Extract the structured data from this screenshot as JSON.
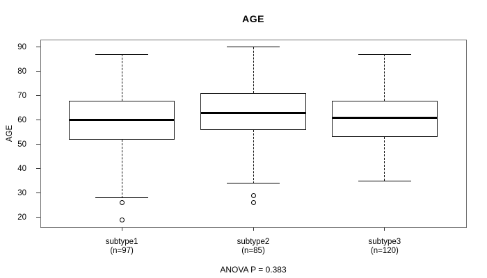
{
  "chart_data": {
    "type": "boxplot",
    "title": "AGE",
    "ylabel": "AGE",
    "footer": "ANOVA P = 0.383",
    "ylim": [
      16,
      93
    ],
    "yticks": [
      20,
      30,
      40,
      50,
      60,
      70,
      80,
      90
    ],
    "grid": false,
    "groups": [
      {
        "label": "subtype1",
        "n_label": "(n=97)",
        "whisker_low": 28,
        "q1": 52,
        "median": 60,
        "q3": 68,
        "whisker_high": 87,
        "outliers": [
          26,
          19
        ]
      },
      {
        "label": "subtype2",
        "n_label": "(n=85)",
        "whisker_low": 34,
        "q1": 56,
        "median": 63,
        "q3": 71,
        "whisker_high": 90,
        "outliers": [
          29,
          26
        ]
      },
      {
        "label": "subtype3",
        "n_label": "(n=120)",
        "whisker_low": 35,
        "q1": 53,
        "median": 61,
        "q3": 68,
        "whisker_high": 87,
        "outliers": []
      }
    ],
    "colors": {
      "line": "#000000",
      "frame": "#707070",
      "background": "#ffffff"
    }
  }
}
